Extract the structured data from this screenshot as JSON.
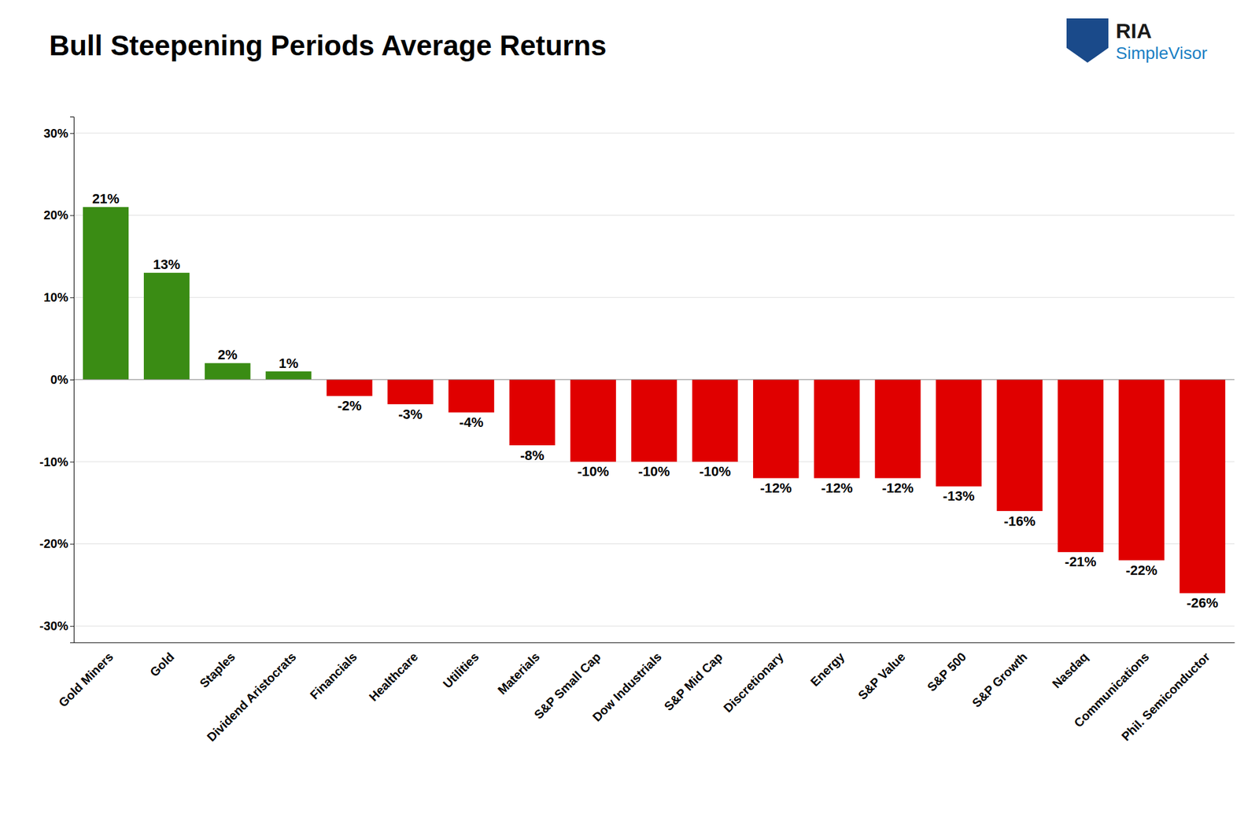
{
  "chart_data": {
    "type": "bar",
    "title": "Bull Steepening Periods Average Returns",
    "annotations": [
      "RIA",
      "SimpleVisor"
    ],
    "categories": [
      "Gold Miners",
      "Gold",
      "Staples",
      "Dividend Aristocrats",
      "Financials",
      "Healthcare",
      "Utilities",
      "Materials",
      "S&P Small Cap",
      "Dow Industrials",
      "S&P Mid Cap",
      "Discretionary",
      "Energy",
      "S&P Value",
      "S&P 500",
      "S&P Growth",
      "Nasdaq",
      "Communications",
      "Phil. Semiconductor"
    ],
    "values": [
      21,
      13,
      2,
      1,
      -2,
      -3,
      -4,
      -8,
      -10,
      -10,
      -10,
      -12,
      -12,
      -12,
      -13,
      -16,
      -21,
      -22,
      -26
    ],
    "value_labels": [
      "21%",
      "13%",
      "2%",
      "1%",
      "-2%",
      "-3%",
      "-4%",
      "-8%",
      "-10%",
      "-10%",
      "-10%",
      "-12%",
      "-12%",
      "-12%",
      "-13%",
      "-16%",
      "-21%",
      "-22%",
      "-26%"
    ],
    "colors": [
      "#3a8c14",
      "#3a8c14",
      "#3a8c14",
      "#3a8c14",
      "#e00000",
      "#e00000",
      "#e00000",
      "#e00000",
      "#e00000",
      "#e00000",
      "#e00000",
      "#e00000",
      "#e00000",
      "#e00000",
      "#e00000",
      "#e00000",
      "#e00000",
      "#e00000",
      "#e00000"
    ],
    "ylim": [
      -32,
      32
    ],
    "yticks": [
      {
        "value": -30,
        "label": "-30%"
      },
      {
        "value": -20,
        "label": "-20%"
      },
      {
        "value": -10,
        "label": "-10%"
      },
      {
        "value": 0,
        "label": "0%"
      },
      {
        "value": 10,
        "label": "10%"
      },
      {
        "value": 20,
        "label": "20%"
      },
      {
        "value": 30,
        "label": "30%"
      }
    ],
    "grid": true,
    "data_labels": true
  }
}
